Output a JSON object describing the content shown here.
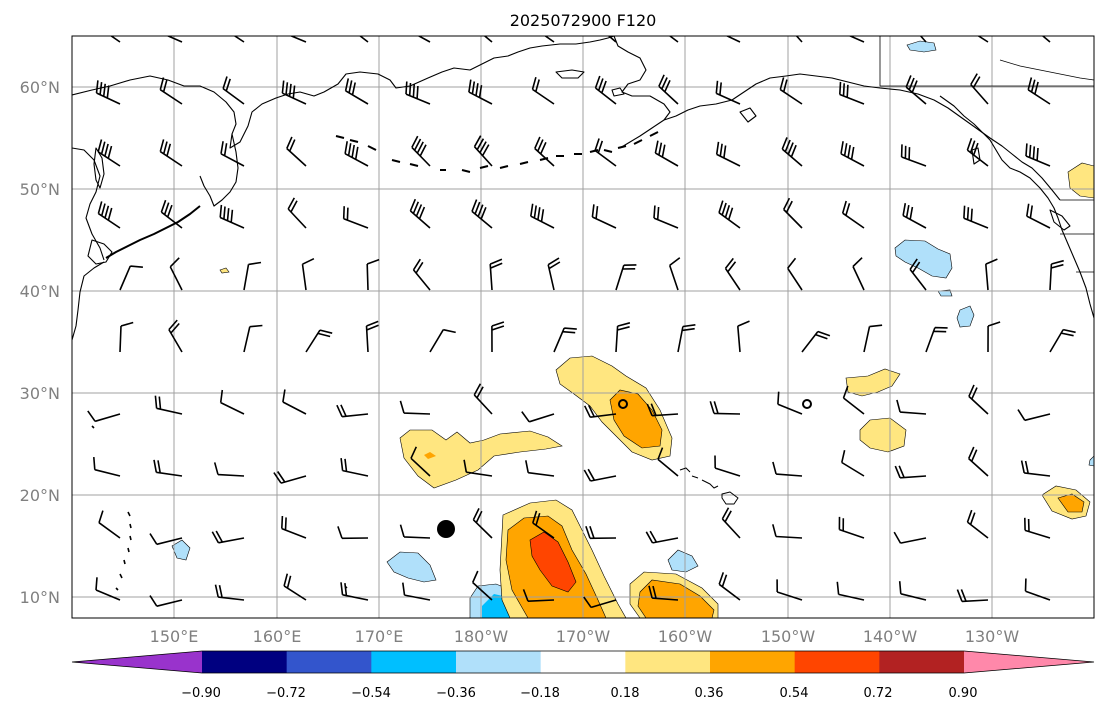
{
  "title": "2025072900 F120",
  "map": {
    "lat_labels": [
      "60°N",
      "50°N",
      "40°N",
      "30°N",
      "20°N",
      "10°N"
    ],
    "lon_labels": [
      "150°E",
      "160°E",
      "170°E",
      "180°W",
      "170°W",
      "160°W",
      "150°W",
      "140°W",
      "130°W"
    ],
    "extent": {
      "lon_min": 140,
      "lon_max": 240,
      "lat_min": 8,
      "lat_max": 65
    },
    "grid_lats": [
      10,
      20,
      30,
      40,
      50,
      60
    ],
    "grid_lons": [
      150,
      160,
      170,
      180,
      190,
      200,
      210,
      220,
      230
    ]
  },
  "colorbar": {
    "tick_labels": [
      "−0.90",
      "−0.72",
      "−0.54",
      "−0.36",
      "−0.18",
      "0.18",
      "0.36",
      "0.54",
      "0.72",
      "0.90"
    ],
    "colors": [
      "#9933cc",
      "#000080",
      "#3355cc",
      "#00bfff",
      "#b0e0fa",
      "#ffffff",
      "#ffe680",
      "#ffa500",
      "#ff4500",
      "#b22222",
      "#ff88aa"
    ],
    "extend": "both"
  },
  "colors": {
    "coast": "#000000",
    "grid": "#a0a0a0",
    "barb": "#000000"
  }
}
